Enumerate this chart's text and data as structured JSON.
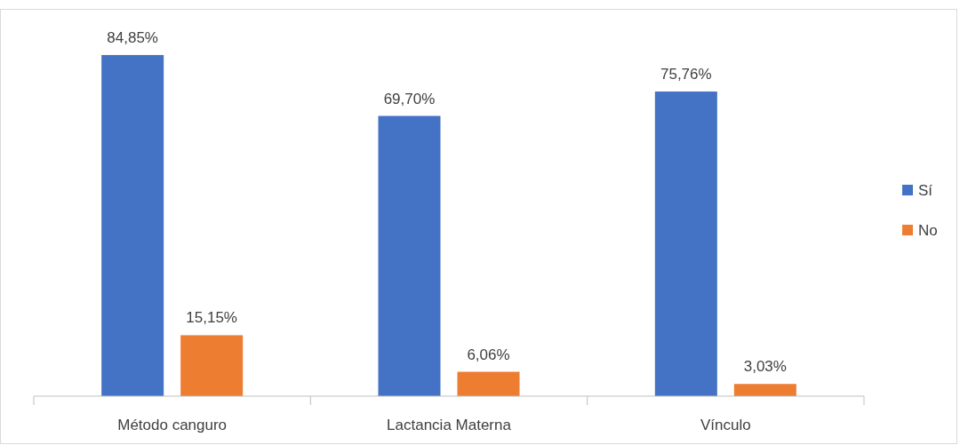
{
  "chart_data": {
    "type": "bar",
    "categories": [
      "Método canguro",
      "Lactancia Materna",
      "Vínculo"
    ],
    "series": [
      {
        "name": "Sí",
        "color": "#4472c4",
        "values": [
          84.85,
          69.7,
          75.76
        ],
        "value_labels": [
          "84,85%",
          "69,70%",
          "75,76%"
        ]
      },
      {
        "name": "No",
        "color": "#ed7d31",
        "values": [
          15.15,
          6.06,
          3.03
        ],
        "value_labels": [
          "15,15%",
          "6,06%",
          "3,03%"
        ]
      }
    ],
    "legend": "right",
    "grid": false
  }
}
